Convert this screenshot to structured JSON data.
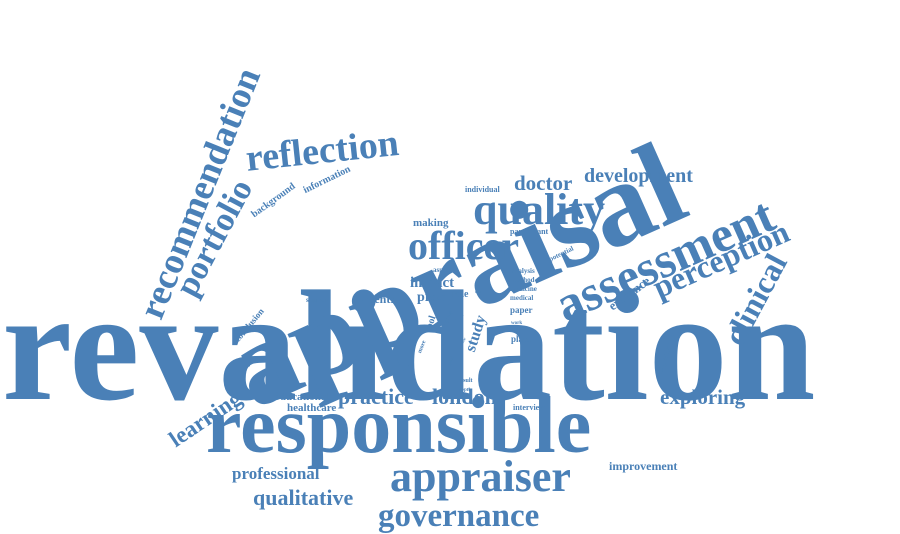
{
  "colors": {
    "text": "#4a80b7",
    "background": "#ffffff"
  },
  "words": [
    "revalidation",
    "appraisal",
    "responsible",
    "appraiser",
    "governance",
    "quality",
    "officer",
    "assessment",
    "reflection",
    "recommendation",
    "portfolio",
    "perception",
    "clinical",
    "qualitative",
    "practice",
    "london",
    "doctor",
    "development",
    "learning",
    "exploring",
    "professional",
    "study",
    "impact",
    "proc",
    "evidence",
    "improvement",
    "central",
    "educational",
    "healthcare",
    "making",
    "information",
    "background",
    "conclusion",
    "experience",
    "participant",
    "individual",
    "potential",
    "analysis",
    "method",
    "medicine",
    "medical",
    "paper",
    "place",
    "role",
    "aspect",
    "tool",
    "support",
    "interview",
    "result",
    "depth",
    "work",
    "more",
    "trial",
    "group",
    "data",
    "new"
  ]
}
